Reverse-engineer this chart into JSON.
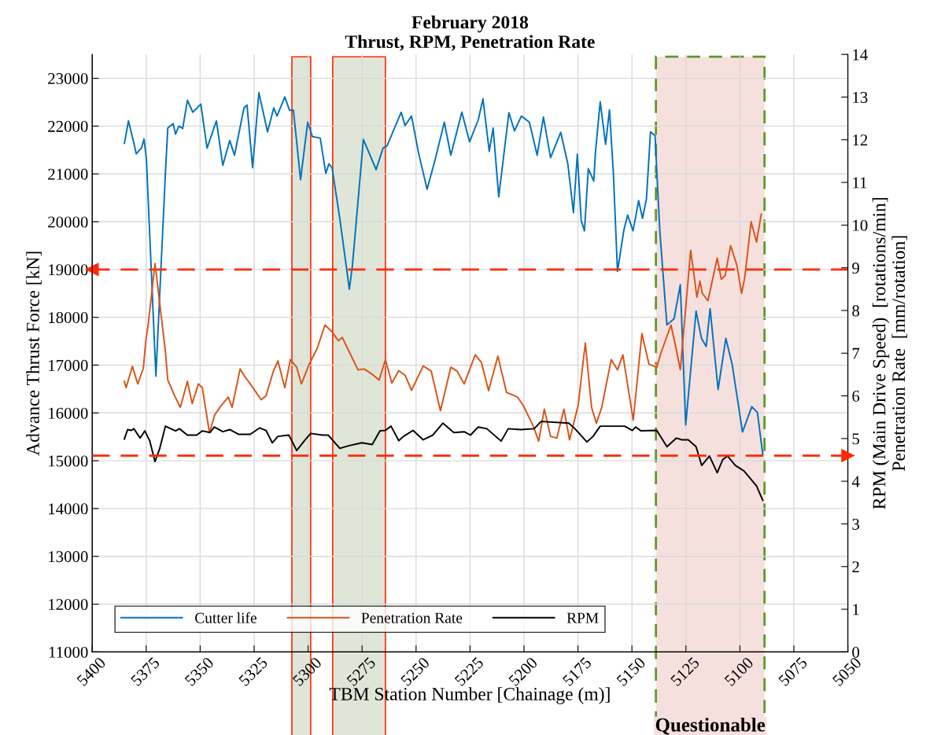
{
  "chart_data": {
    "type": "line",
    "title": "February 2018\nThrust, RPM, Penetration Rate",
    "xlabel": "TBM Station Number [Chainage (m)]",
    "ylabel": "Advance Thrust Force [kN]",
    "y2label": "RPM (Main Drive Speed)  [rotations/min]\nPenetration Rate  [mm/rotation]",
    "xlim": [
      5400,
      5050
    ],
    "xticks": [
      5400,
      5375,
      5350,
      5325,
      5300,
      5275,
      5250,
      5225,
      5200,
      5175,
      5150,
      5125,
      5100,
      5075,
      5050
    ],
    "ylim": [
      11000,
      23500
    ],
    "yticks": [
      11000,
      12000,
      13000,
      14000,
      15000,
      16000,
      17000,
      18000,
      19000,
      20000,
      21000,
      22000,
      23000
    ],
    "y2lim": [
      0,
      14
    ],
    "y2ticks": [
      0,
      1,
      2,
      3,
      4,
      5,
      6,
      7,
      8,
      9,
      10,
      11,
      12,
      13,
      14
    ],
    "grid": true,
    "legend": "bottom left",
    "line_style": "solid",
    "marker": "none",
    "series": [
      {
        "name": "Cutter life",
        "color": "#0072bd",
        "x": [
          5385.1,
          5383.2,
          5380.7,
          5379.6,
          5377.1,
          5376.0,
          5374.9,
          5370.5,
          5366.1,
          5365.0,
          5362.5,
          5361.4,
          5359.9,
          5358.1,
          5355.9,
          5353.4,
          5349.7,
          5346.8,
          5342.5,
          5339.5,
          5336.3,
          5334.1,
          5329.7,
          5328.3,
          5325.7,
          5322.8,
          5318.8,
          5315.9,
          5314.4,
          5310.8,
          5308.6,
          5306.8,
          5303.5,
          5300.2,
          5298.0,
          5294.4,
          5291.8,
          5290.4,
          5288.9,
          5285.3,
          5280.9,
          5279.5,
          5274.4,
          5268.5,
          5265.3,
          5263.4,
          5256.9,
          5255.1,
          5252.1,
          5248.9,
          5244.9,
          5241.2,
          5236.9,
          5233.9,
          5228.8,
          5225.2,
          5221.2,
          5219.0,
          5216.1,
          5214.3,
          5211.7,
          5207.0,
          5204.4,
          5201.2,
          5197.5,
          5193.9,
          5191.0,
          5187.7,
          5183.0,
          5179.7,
          5177.1,
          5175.3,
          5173.5,
          5172.0,
          5170.2,
          5167.7,
          5166.9,
          5164.7,
          5162.2,
          5160.4,
          5158.6,
          5156.7,
          5153.8,
          5152.0,
          5149.5,
          5146.9,
          5145.1,
          5143.3,
          5141.4,
          5139.3,
          5137.1,
          5133.8,
          5130.5,
          5127.6,
          5125.1,
          5120.3,
          5117.8,
          5115.6,
          5113.8,
          5110.1,
          5106.5,
          5103.6,
          5098.8,
          5094.5,
          5091.9,
          5089.4
        ],
        "values": [
          21640,
          22110,
          21640,
          21420,
          21550,
          21730,
          21310,
          16770,
          21010,
          21960,
          22050,
          21830,
          22000,
          21950,
          22540,
          22290,
          22460,
          21540,
          22110,
          21180,
          21700,
          21390,
          22380,
          22440,
          21130,
          22700,
          21880,
          22380,
          22210,
          22610,
          22330,
          22330,
          20880,
          22080,
          21780,
          21750,
          21010,
          21210,
          21130,
          20060,
          18590,
          19070,
          21720,
          21090,
          21540,
          21590,
          22290,
          22010,
          22210,
          21450,
          20680,
          21290,
          22080,
          21390,
          22290,
          21670,
          22130,
          22570,
          21470,
          21960,
          20520,
          22280,
          21900,
          22210,
          22080,
          21390,
          22190,
          21340,
          21870,
          21210,
          20190,
          21410,
          20020,
          19810,
          21110,
          20850,
          21450,
          22510,
          21620,
          22340,
          21010,
          18960,
          19810,
          20140,
          19810,
          20440,
          20070,
          20470,
          21880,
          21800,
          19810,
          17840,
          17970,
          18680,
          15750,
          18130,
          17560,
          17390,
          18180,
          16490,
          17560,
          17020,
          15600,
          16130,
          16010,
          15130
        ]
      },
      {
        "name": "Penetration Rate",
        "color": "#d95319",
        "axis": "y2",
        "x": [
          5385.1,
          5384.3,
          5381.4,
          5378.9,
          5376.3,
          5375.2,
          5374.1,
          5370.9,
          5366.1,
          5365.0,
          5361.8,
          5359.2,
          5355.9,
          5353.7,
          5350.8,
          5349.0,
          5345.7,
          5343.2,
          5340.6,
          5337.0,
          5335.2,
          5331.5,
          5329.7,
          5326.8,
          5321.7,
          5319.5,
          5316.2,
          5314.0,
          5310.8,
          5308.2,
          5305.3,
          5303.1,
          5299.5,
          5295.8,
          5292.2,
          5288.9,
          5286.0,
          5284.2,
          5281.3,
          5276.9,
          5274.0,
          5270.7,
          5267.1,
          5264.2,
          5261.2,
          5258.0,
          5255.0,
          5252.1,
          5246.7,
          5243.0,
          5238.7,
          5233.9,
          5231.0,
          5227.7,
          5222.6,
          5219.7,
          5216.4,
          5212.1,
          5208.1,
          5203.0,
          5200.4,
          5195.7,
          5193.2,
          5190.6,
          5187.7,
          5184.8,
          5181.5,
          5178.9,
          5174.9,
          5171.6,
          5168.7,
          5166.5,
          5164.0,
          5159.6,
          5156.7,
          5154.2,
          5149.4,
          5145.4,
          5142.1,
          5138.5,
          5136.6,
          5131.9,
          5129.4,
          5127.6,
          5122.8,
          5119.9,
          5118.5,
          5117.4,
          5114.8,
          5110.5,
          5108.6,
          5106.8,
          5104.3,
          5101.4,
          5099.2,
          5097.7,
          5094.8,
          5092.3,
          5090.1
        ],
        "values": [
          6.34,
          6.19,
          6.69,
          6.28,
          6.65,
          7.29,
          7.66,
          9.1,
          7.04,
          6.37,
          6.0,
          5.73,
          6.34,
          5.82,
          6.28,
          6.19,
          5.14,
          5.56,
          5.75,
          5.97,
          5.73,
          6.63,
          6.48,
          6.28,
          5.91,
          6.0,
          6.56,
          6.82,
          6.19,
          6.85,
          6.67,
          6.28,
          6.74,
          7.11,
          7.66,
          7.5,
          7.29,
          7.37,
          7.07,
          6.61,
          6.63,
          6.52,
          6.37,
          6.85,
          6.3,
          6.59,
          6.48,
          6.13,
          6.7,
          6.58,
          5.65,
          6.67,
          6.58,
          6.28,
          6.96,
          6.78,
          6.12,
          6.93,
          6.08,
          5.97,
          5.78,
          5.29,
          4.94,
          5.69,
          5.05,
          5.01,
          5.69,
          4.97,
          5.78,
          7.24,
          5.73,
          5.36,
          5.73,
          6.85,
          6.61,
          6.96,
          5.43,
          7.46,
          6.74,
          6.67,
          7.0,
          7.66,
          7.07,
          6.61,
          9.41,
          8.31,
          8.69,
          8.4,
          8.23,
          9.23,
          8.73,
          8.82,
          9.52,
          9.06,
          8.4,
          8.79,
          10.08,
          9.6,
          10.26
        ]
      },
      {
        "name": "RPM",
        "color": "#000000",
        "axis": "y2",
        "x": [
          5385.1,
          5383.6,
          5381.8,
          5380.7,
          5377.8,
          5375.6,
          5373.4,
          5370.9,
          5368.7,
          5366.1,
          5363.6,
          5361.4,
          5359.6,
          5355.9,
          5351.6,
          5349.0,
          5345.4,
          5343.5,
          5339.5,
          5336.3,
          5332.3,
          5326.8,
          5322.4,
          5319.5,
          5316.6,
          5314.0,
          5308.9,
          5305.3,
          5301.7,
          5298.8,
          5293.3,
          5290.7,
          5285.3,
          5281.3,
          5275.1,
          5270.3,
          5266.7,
          5264.2,
          5261.6,
          5258.0,
          5255.8,
          5251.4,
          5246.7,
          5242.3,
          5237.6,
          5232.5,
          5227.7,
          5224.8,
          5221.2,
          5217.2,
          5210.6,
          5207.3,
          5201.5,
          5195.3,
          5192.1,
          5179.3,
          5176.4,
          5170.9,
          5168.0,
          5164.7,
          5153.4,
          5149.8,
          5148.3,
          5145.8,
          5138.5,
          5133.8,
          5129.4,
          5126.8,
          5123.9,
          5120.3,
          5117.7,
          5114.1,
          5110.5,
          5107.9,
          5105.7,
          5102.1,
          5098.1,
          5092.3,
          5089.4
        ],
        "values": [
          4.99,
          5.21,
          5.19,
          5.23,
          5.01,
          5.18,
          4.95,
          4.46,
          4.77,
          5.29,
          5.23,
          5.18,
          5.23,
          5.08,
          5.08,
          5.18,
          5.14,
          5.27,
          5.16,
          5.21,
          5.1,
          5.1,
          5.25,
          5.19,
          4.9,
          5.05,
          5.08,
          4.72,
          4.95,
          5.12,
          5.08,
          5.08,
          4.77,
          4.83,
          4.9,
          4.86,
          5.18,
          5.19,
          5.29,
          4.95,
          5.05,
          5.19,
          4.97,
          5.08,
          5.36,
          5.14,
          5.16,
          5.08,
          5.27,
          5.23,
          4.94,
          5.23,
          5.21,
          5.23,
          5.4,
          5.36,
          5.23,
          4.92,
          5.05,
          5.29,
          5.29,
          5.19,
          5.27,
          5.18,
          5.19,
          4.81,
          5.01,
          4.97,
          4.97,
          4.81,
          4.37,
          4.59,
          4.2,
          4.51,
          4.59,
          4.37,
          4.24,
          3.89,
          3.55
        ]
      }
    ],
    "ref_lines": [
      {
        "axis": "y",
        "value": 19000,
        "color": "#ff2a00",
        "line_style": "dashed"
      },
      {
        "axis": "y2",
        "value": 4.6,
        "color": "#ff2a00",
        "line_style": "dashed"
      }
    ],
    "bands": [
      {
        "axis": "x",
        "from": 5307.5,
        "to": 5298.8,
        "color": "#dfe6d8"
      },
      {
        "axis": "x",
        "from": 5288.6,
        "to": 5264.2,
        "color": "#dfe6d8"
      },
      {
        "axis": "x",
        "from": 5138.9,
        "to": 5088.6,
        "color": "#f6e0de",
        "label": "Questionable"
      }
    ]
  }
}
